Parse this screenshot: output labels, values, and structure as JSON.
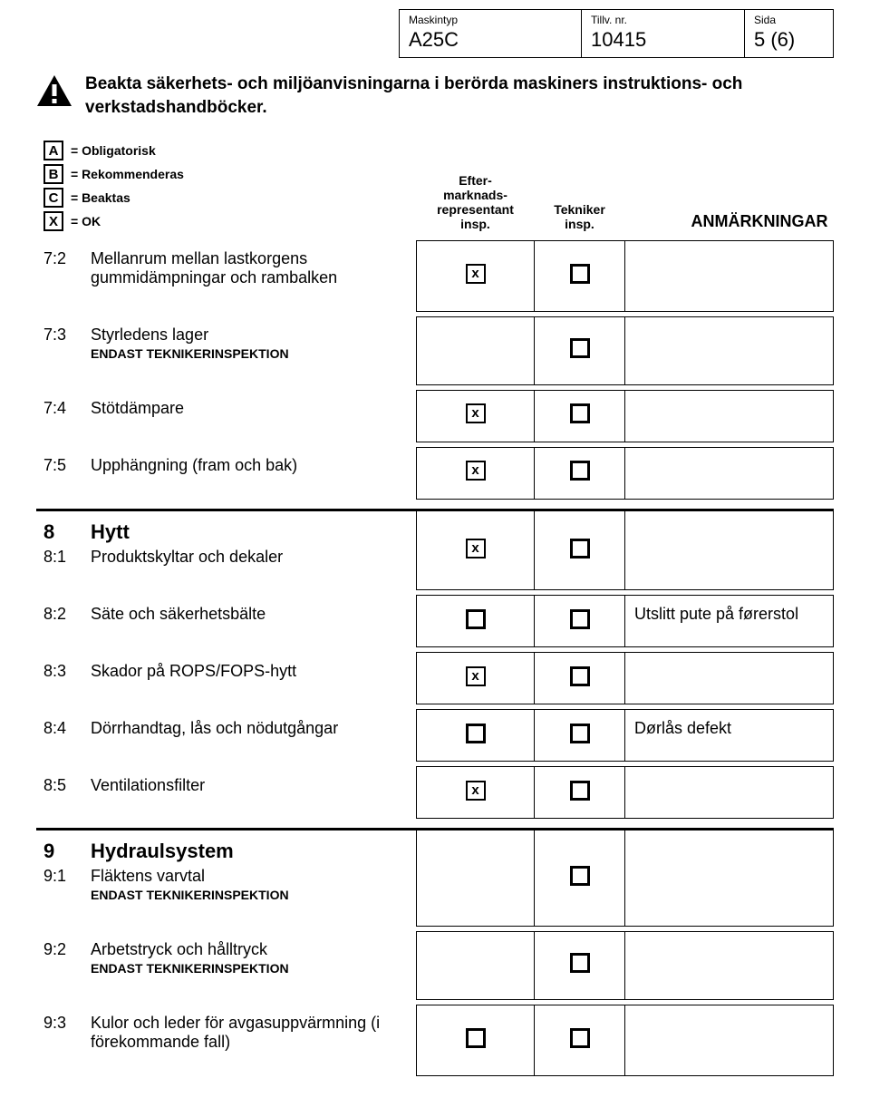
{
  "header": {
    "maskintyp_label": "Maskintyp",
    "maskintyp_value": "A25C",
    "tillvnr_label": "Tillv. nr.",
    "tillvnr_value": "10415",
    "sida_label": "Sida",
    "sida_value": "5 (6)"
  },
  "warning": "Beakta säkerhets- och miljöanvisningarna i berörda maskiners instruktions- och verkstadshandböcker.",
  "legend": {
    "A": "= Obligatorisk",
    "B": "= Rekommenderas",
    "C": "= Beaktas",
    "X": "= OK"
  },
  "columns": {
    "efter": "Efter-\nmarknads-\nrepresentant\ninsp.",
    "tek": "Tekniker\ninsp.",
    "note": "ANMÄRKNINGAR"
  },
  "rows": [
    {
      "num": "7:2",
      "desc": "Mellanrum mellan lastkorgens gummidämpningar och rambalken",
      "efter": "x",
      "tek": "empty",
      "note": "",
      "sectionStart": false
    },
    {
      "num": "7:3",
      "desc": "Styrledens lager",
      "sub": "ENDAST TEKNIKERINSPEKTION",
      "efter": "",
      "tek": "empty",
      "note": ""
    },
    {
      "num": "7:4",
      "desc": "Stötdämpare",
      "efter": "x",
      "tek": "empty",
      "note": ""
    },
    {
      "num": "7:5",
      "desc": "Upphängning (fram och bak)",
      "efter": "x",
      "tek": "empty",
      "note": ""
    },
    {
      "num": "8",
      "desc": "Hytt",
      "isHeading": true,
      "subrow": {
        "num": "8:1",
        "desc": "Produktskyltar och dekaler"
      },
      "efter": "x",
      "tek": "empty",
      "note": "",
      "sectionStart": true
    },
    {
      "num": "8:2",
      "desc": "Säte och säkerhetsbälte",
      "efter": "empty",
      "tek": "empty",
      "note": "Utslitt pute på førerstol"
    },
    {
      "num": "8:3",
      "desc": "Skador på ROPS/FOPS-hytt",
      "efter": "x",
      "tek": "empty",
      "note": ""
    },
    {
      "num": "8:4",
      "desc": "Dörrhandtag, lås och nödutgångar",
      "efter": "empty",
      "tek": "empty",
      "note": "Dørlås defekt"
    },
    {
      "num": "8:5",
      "desc": "Ventilationsfilter",
      "efter": "x",
      "tek": "empty",
      "note": ""
    },
    {
      "num": "9",
      "desc": "Hydraulsystem",
      "isHeading": true,
      "subrow": {
        "num": "9:1",
        "desc": "Fläktens varvtal",
        "sub": "ENDAST TEKNIKERINSPEKTION"
      },
      "efter": "",
      "tek": "empty",
      "note": "",
      "sectionStart": true
    },
    {
      "num": "9:2",
      "desc": "Arbetstryck och hålltryck",
      "sub": "ENDAST TEKNIKERINSPEKTION",
      "efter": "",
      "tek": "empty",
      "note": ""
    },
    {
      "num": "9:3",
      "desc": "Kulor och leder för avgasuppvärmning (i förekommande fall)",
      "efter": "empty",
      "tek": "empty",
      "note": ""
    }
  ]
}
